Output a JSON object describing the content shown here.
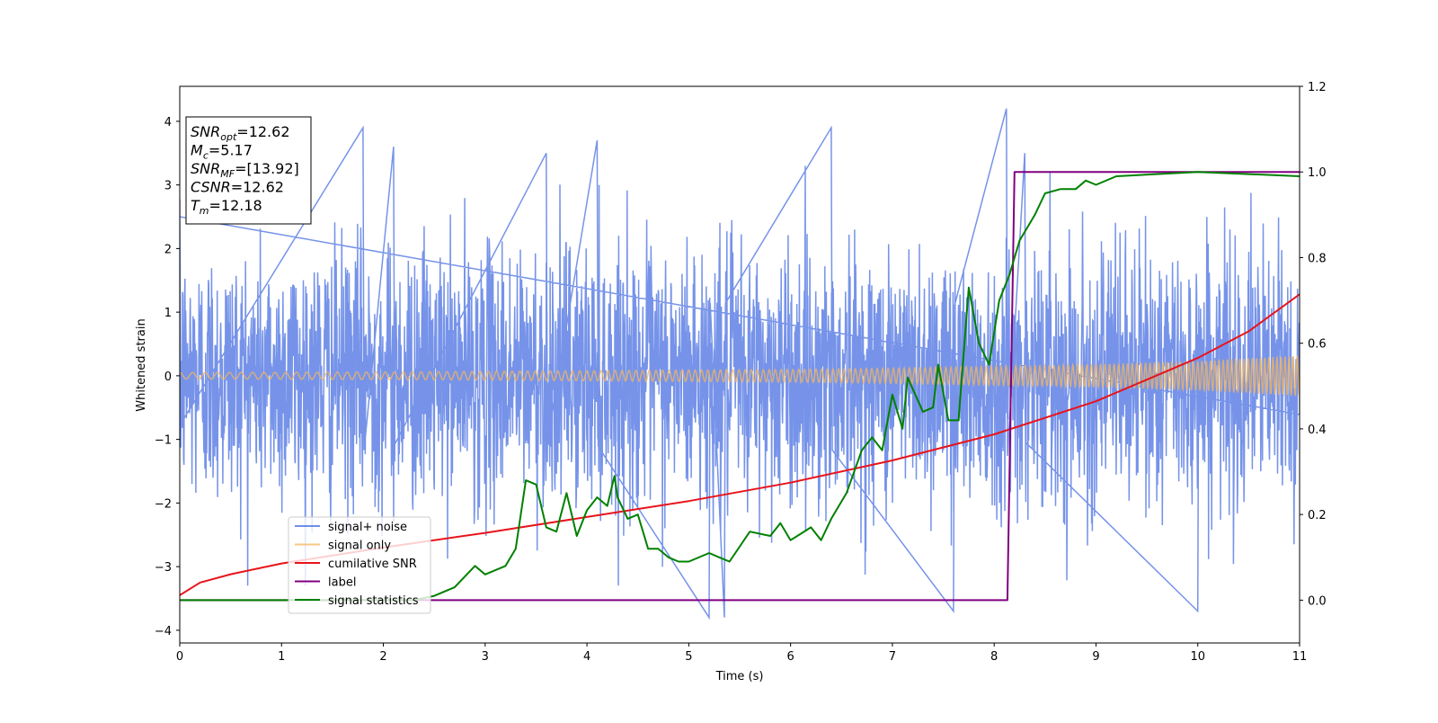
{
  "chart_data": {
    "type": "line",
    "xlabel": "Time (s)",
    "ylabel": "Whitened strain",
    "xlim": [
      0,
      11
    ],
    "ylim": [
      -4.2,
      4.55
    ],
    "y2lim": [
      -0.1,
      1.2
    ],
    "xticks": [
      0,
      1,
      2,
      3,
      4,
      5,
      6,
      7,
      8,
      9,
      10,
      11
    ],
    "yticks": [
      -4,
      -3,
      -2,
      -1,
      0,
      1,
      2,
      3,
      4
    ],
    "y2ticks": [
      0.0,
      0.2,
      0.4,
      0.6,
      0.8,
      1.0,
      1.2
    ],
    "grid": false,
    "legend_position": "lower-left",
    "info_box": [
      {
        "symbol": "SNR",
        "sub": "opt",
        "value": "=12.62"
      },
      {
        "symbol": "M",
        "sub": "c",
        "value": "=5.17"
      },
      {
        "symbol": "SNR",
        "sub": "MF",
        "value": "=[13.92]"
      },
      {
        "symbol": "CSNR",
        "sub": "",
        "value": "=12.62"
      },
      {
        "symbol": "T",
        "sub": "m",
        "value": "=12.18"
      }
    ],
    "series": [
      {
        "name": "signal+ noise",
        "color": "#4169e1",
        "axis": "left",
        "noise_std": 1.0,
        "peaks": [
          [
            0.0,
            2.5
          ],
          [
            1.8,
            3.9
          ],
          [
            2.1,
            3.6
          ],
          [
            3.6,
            3.5
          ],
          [
            4.1,
            3.7
          ],
          [
            5.2,
            -3.8
          ],
          [
            5.35,
            -3.8
          ],
          [
            6.4,
            3.9
          ],
          [
            7.6,
            -3.7
          ],
          [
            8.12,
            4.2
          ],
          [
            8.3,
            3.5
          ],
          [
            10.0,
            -3.7
          ]
        ]
      },
      {
        "name": "signal only",
        "color": "#f5b55b",
        "axis": "left",
        "envelope": [
          [
            0,
            0.05
          ],
          [
            2,
            0.06
          ],
          [
            4,
            0.08
          ],
          [
            6,
            0.1
          ],
          [
            7,
            0.12
          ],
          [
            8,
            0.15
          ],
          [
            9,
            0.18
          ],
          [
            10,
            0.23
          ],
          [
            11,
            0.32
          ]
        ]
      },
      {
        "name": "cumilative SNR",
        "color": "#e8141b",
        "axis": "left",
        "points": [
          [
            0,
            -3.45
          ],
          [
            0.2,
            -3.25
          ],
          [
            0.5,
            -3.12
          ],
          [
            1,
            -2.95
          ],
          [
            2,
            -2.7
          ],
          [
            3,
            -2.47
          ],
          [
            4,
            -2.22
          ],
          [
            5,
            -1.97
          ],
          [
            6,
            -1.68
          ],
          [
            7,
            -1.33
          ],
          [
            8,
            -0.92
          ],
          [
            9,
            -0.4
          ],
          [
            10,
            0.28
          ],
          [
            10.5,
            0.7
          ],
          [
            11,
            1.28
          ]
        ]
      },
      {
        "name": "label",
        "color": "#800080",
        "axis": "right",
        "points": [
          [
            0,
            0.0
          ],
          [
            8.13,
            0.0
          ],
          [
            8.2,
            1.0
          ],
          [
            11,
            1.0
          ]
        ]
      },
      {
        "name": "signal statistics",
        "color": "#008000",
        "axis": "right",
        "points": [
          [
            0,
            0.0
          ],
          [
            1,
            0.0
          ],
          [
            1.5,
            0.0
          ],
          [
            2.3,
            0.0
          ],
          [
            2.5,
            0.01
          ],
          [
            2.7,
            0.03
          ],
          [
            2.9,
            0.08
          ],
          [
            3.0,
            0.06
          ],
          [
            3.2,
            0.08
          ],
          [
            3.3,
            0.12
          ],
          [
            3.4,
            0.28
          ],
          [
            3.5,
            0.27
          ],
          [
            3.6,
            0.17
          ],
          [
            3.7,
            0.16
          ],
          [
            3.8,
            0.25
          ],
          [
            3.9,
            0.15
          ],
          [
            4.0,
            0.21
          ],
          [
            4.1,
            0.24
          ],
          [
            4.2,
            0.22
          ],
          [
            4.27,
            0.29
          ],
          [
            4.3,
            0.24
          ],
          [
            4.4,
            0.19
          ],
          [
            4.5,
            0.2
          ],
          [
            4.6,
            0.12
          ],
          [
            4.7,
            0.12
          ],
          [
            4.8,
            0.1
          ],
          [
            4.9,
            0.09
          ],
          [
            5.0,
            0.09
          ],
          [
            5.2,
            0.11
          ],
          [
            5.3,
            0.1
          ],
          [
            5.4,
            0.09
          ],
          [
            5.6,
            0.16
          ],
          [
            5.8,
            0.15
          ],
          [
            5.9,
            0.18
          ],
          [
            6.0,
            0.14
          ],
          [
            6.2,
            0.17
          ],
          [
            6.3,
            0.14
          ],
          [
            6.4,
            0.19
          ],
          [
            6.55,
            0.25
          ],
          [
            6.7,
            0.35
          ],
          [
            6.8,
            0.38
          ],
          [
            6.9,
            0.35
          ],
          [
            7.0,
            0.48
          ],
          [
            7.1,
            0.4
          ],
          [
            7.15,
            0.52
          ],
          [
            7.3,
            0.44
          ],
          [
            7.4,
            0.45
          ],
          [
            7.45,
            0.55
          ],
          [
            7.55,
            0.42
          ],
          [
            7.65,
            0.42
          ],
          [
            7.75,
            0.73
          ],
          [
            7.85,
            0.6
          ],
          [
            7.95,
            0.55
          ],
          [
            8.05,
            0.7
          ],
          [
            8.15,
            0.76
          ],
          [
            8.25,
            0.84
          ],
          [
            8.35,
            0.88
          ],
          [
            8.4,
            0.9
          ],
          [
            8.5,
            0.95
          ],
          [
            8.65,
            0.96
          ],
          [
            8.8,
            0.96
          ],
          [
            8.9,
            0.98
          ],
          [
            9.0,
            0.97
          ],
          [
            9.2,
            0.99
          ],
          [
            10.0,
            1.0
          ],
          [
            11.0,
            0.99
          ]
        ]
      }
    ]
  }
}
